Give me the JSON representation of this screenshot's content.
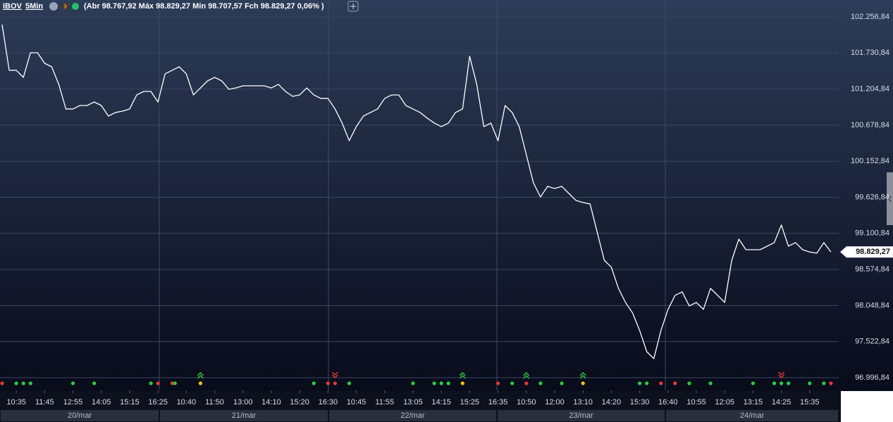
{
  "chart_data": {
    "type": "line",
    "title": "IBOV",
    "subtitle": "5Min",
    "annotation": "(Abr 98.767,92 Máx 98.829,27 Mín 98.707,57 Fch 98.829,27 0,06% )",
    "color": "#ffffff",
    "grid": true,
    "values": [
      102144,
      101478,
      101478,
      101375,
      101734,
      101734,
      101580,
      101529,
      101273,
      100914,
      100914,
      100965,
      100965,
      101016,
      100965,
      100811,
      100863,
      100883,
      100914,
      101119,
      101170,
      101170,
      101016,
      101426,
      101478,
      101529,
      101426,
      101119,
      101221,
      101324,
      101375,
      101324,
      101201,
      101221,
      101252,
      101252,
      101252,
      101252,
      101221,
      101273,
      101170,
      101098,
      101119,
      101221,
      101119,
      101068,
      101068,
      100914,
      100709,
      100452,
      100657,
      100811,
      100863,
      100914,
      101068,
      101119,
      101119,
      100965,
      100914,
      100863,
      100781,
      100709,
      100657,
      100709,
      100863,
      100914,
      101683,
      101273,
      100657,
      100709,
      100452,
      100965,
      100863,
      100657,
      100247,
      99837,
      99632,
      99786,
      99755,
      99786,
      99683,
      99581,
      99550,
      99530,
      99120,
      98709,
      98607,
      98299,
      98094,
      97940,
      97684,
      97376,
      97274,
      97684,
      97992,
      98197,
      98248,
      98043,
      98094,
      97992,
      98299,
      98197,
      98094,
      98709,
      99017,
      98863,
      98863,
      98863,
      98914,
      98966,
      99222,
      98914,
      98966,
      98863,
      98829,
      98812,
      98966,
      98829.27
    ],
    "last_marker": {
      "value": 98829.27,
      "label": "98.829,27"
    },
    "xlim": [
      -0.3,
      118.1
    ],
    "ylim": [
      96812,
      102503
    ],
    "yticks": [
      {
        "value": 96996.84,
        "label": "96.996,84"
      },
      {
        "value": 97522.84,
        "label": "97.522,84"
      },
      {
        "value": 98048.84,
        "label": "98.048,84"
      },
      {
        "value": 98574.84,
        "label": "98.574,84"
      },
      {
        "value": 99100.84,
        "label": "99.100,84"
      },
      {
        "value": 99626.84,
        "label": "99.626,84"
      },
      {
        "value": 100152.84,
        "label": "100.152,84"
      },
      {
        "value": 100678.84,
        "label": "100.678,84"
      },
      {
        "value": 101204.84,
        "label": "101.204,84"
      },
      {
        "value": 101730.84,
        "label": "101.730,84"
      },
      {
        "value": 102256.84,
        "label": "102.256,84"
      }
    ],
    "xticks": [
      {
        "value": 2,
        "label": "10:35"
      },
      {
        "value": 6,
        "label": "11:45"
      },
      {
        "value": 10,
        "label": "12:55"
      },
      {
        "value": 14,
        "label": "14:05"
      },
      {
        "value": 18,
        "label": "15:15"
      },
      {
        "value": 22,
        "label": "16:25"
      },
      {
        "value": 26,
        "label": "10:40"
      },
      {
        "value": 30,
        "label": "11:50"
      },
      {
        "value": 34,
        "label": "13:00"
      },
      {
        "value": 38,
        "label": "14:10"
      },
      {
        "value": 42,
        "label": "15:20"
      },
      {
        "value": 46,
        "label": "16:30"
      },
      {
        "value": 50,
        "label": "10:45"
      },
      {
        "value": 54,
        "label": "11:55"
      },
      {
        "value": 58,
        "label": "13:05"
      },
      {
        "value": 62,
        "label": "14:15"
      },
      {
        "value": 66,
        "label": "15:25"
      },
      {
        "value": 70,
        "label": "16:35"
      },
      {
        "value": 74,
        "label": "10:50"
      },
      {
        "value": 78,
        "label": "12:00"
      },
      {
        "value": 82,
        "label": "13:10"
      },
      {
        "value": 86,
        "label": "14:20"
      },
      {
        "value": 90,
        "label": "15:30"
      },
      {
        "value": 94,
        "label": "16:40"
      },
      {
        "value": 98,
        "label": "10:55"
      },
      {
        "value": 102,
        "label": "12:05"
      },
      {
        "value": 106,
        "label": "13:15"
      },
      {
        "value": 110,
        "label": "14:25"
      },
      {
        "value": 114,
        "label": "15:35"
      }
    ],
    "days": [
      "20/mar",
      "21/mar",
      "22/mar",
      "23/mar",
      "24/mar"
    ],
    "signals": [
      {
        "x": 0,
        "color": "#e53935"
      },
      {
        "x": 2,
        "color": "#2ecc40"
      },
      {
        "x": 3,
        "color": "#2ecc40"
      },
      {
        "x": 4,
        "color": "#2ecc40"
      },
      {
        "x": 10,
        "color": "#2ecc40"
      },
      {
        "x": 13,
        "color": "#2ecc40"
      },
      {
        "x": 21,
        "color": "#2ecc40"
      },
      {
        "x": 22,
        "color": "#e53935"
      },
      {
        "x": 24,
        "color": "#e53935"
      },
      {
        "x": 24.4,
        "color": "#2ecc40"
      },
      {
        "x": 28,
        "color": "#f1c40f",
        "kind": "up"
      },
      {
        "x": 44,
        "color": "#2ecc40"
      },
      {
        "x": 46,
        "color": "#e53935"
      },
      {
        "x": 47,
        "color": "#e53935",
        "kind": "down"
      },
      {
        "x": 49,
        "color": "#2ecc40"
      },
      {
        "x": 58,
        "color": "#2ecc40"
      },
      {
        "x": 61,
        "color": "#2ecc40"
      },
      {
        "x": 62,
        "color": "#2ecc40"
      },
      {
        "x": 63,
        "color": "#2ecc40"
      },
      {
        "x": 65,
        "color": "#f1c40f",
        "kind": "up"
      },
      {
        "x": 70,
        "color": "#e53935"
      },
      {
        "x": 72,
        "color": "#2ecc40"
      },
      {
        "x": 74,
        "color": "#e53935",
        "kind": "up"
      },
      {
        "x": 76,
        "color": "#2ecc40"
      },
      {
        "x": 79,
        "color": "#2ecc40"
      },
      {
        "x": 82,
        "color": "#f1c40f",
        "kind": "up"
      },
      {
        "x": 90,
        "color": "#2ecc40"
      },
      {
        "x": 91,
        "color": "#2ecc40"
      },
      {
        "x": 93,
        "color": "#e53935"
      },
      {
        "x": 95,
        "color": "#e53935"
      },
      {
        "x": 97,
        "color": "#2ecc40"
      },
      {
        "x": 100,
        "color": "#2ecc40"
      },
      {
        "x": 106,
        "color": "#2ecc40"
      },
      {
        "x": 109,
        "color": "#2ecc40"
      },
      {
        "x": 110,
        "color": "#2ecc40",
        "kind": "down"
      },
      {
        "x": 111,
        "color": "#2ecc40"
      },
      {
        "x": 114,
        "color": "#2ecc40"
      },
      {
        "x": 116,
        "color": "#2ecc40"
      },
      {
        "x": 117,
        "color": "#e53935"
      }
    ]
  }
}
